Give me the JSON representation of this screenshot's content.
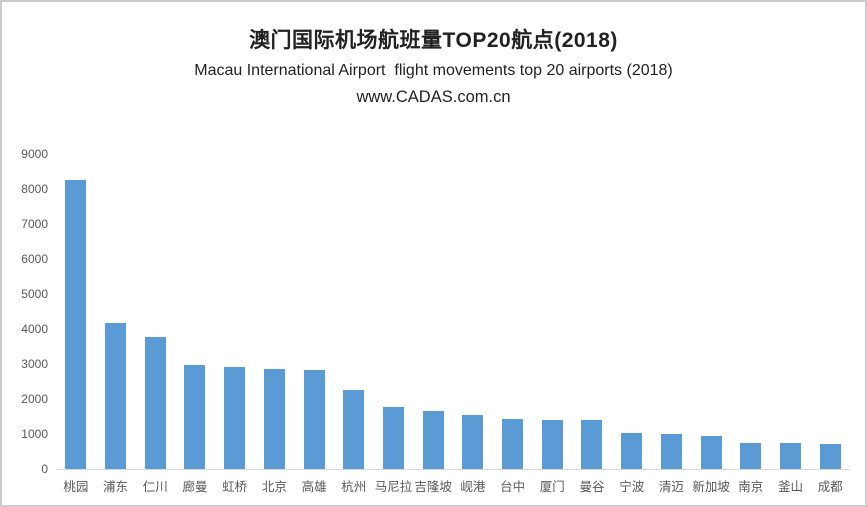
{
  "chart_data": {
    "type": "bar",
    "title": "澳门国际机场航班量TOP20航点(2018)",
    "subtitle": "Macau International Airport  flight movements top 20 airports (2018)",
    "source": "www.CADAS.com.cn",
    "categories": [
      "桃园",
      "浦东",
      "仁川",
      "廊曼",
      "虹桥",
      "北京",
      "高雄",
      "杭州",
      "马尼拉",
      "吉隆坡",
      "岘港",
      "台中",
      "厦门",
      "曼谷",
      "宁波",
      "清迈",
      "新加坡",
      "南京",
      "釜山",
      "成都"
    ],
    "values": [
      8250,
      4160,
      3760,
      2960,
      2920,
      2870,
      2830,
      2270,
      1760,
      1660,
      1550,
      1430,
      1400,
      1400,
      1030,
      1000,
      950,
      730,
      730,
      710
    ],
    "xlabel": "",
    "ylabel": "",
    "ylim": [
      0,
      9000
    ],
    "yticks": [
      0,
      1000,
      2000,
      3000,
      4000,
      5000,
      6000,
      7000,
      8000,
      9000
    ],
    "grid": false,
    "legend": false,
    "bar_color": "#5B9BD5",
    "axis_text_color": "#595959",
    "axis_line_color": "#D9D9D9"
  }
}
